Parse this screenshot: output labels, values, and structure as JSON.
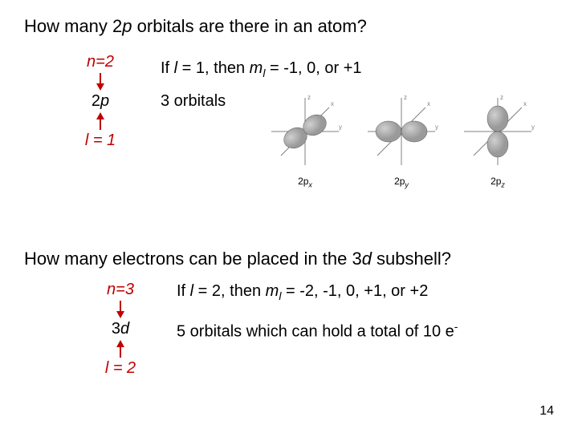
{
  "colors": {
    "text": "#000000",
    "accent": "#c00000",
    "arrow": "#c00000",
    "orbital_fill": "#9a9a9a",
    "orbital_stroke": "#5a5a5a",
    "axis": "#808080",
    "bg": "#ffffff"
  },
  "font": {
    "family": "Arial",
    "size_body": 20,
    "size_question": 22,
    "size_pagenum": 16
  },
  "q1": {
    "question_pre": "How many 2",
    "question_mid": "p",
    "question_post": " orbitals are there in an atom?",
    "n_label_pre": "n",
    "n_label_post": "=2",
    "subshell_pre": "2",
    "subshell_letter": "p",
    "l_label_pre": "l",
    "l_label_post": " = 1",
    "line1_pre": "If ",
    "line1_l": "l",
    "line1_mid": " = 1, then ",
    "line1_m": "m",
    "line1_post": " = -1, 0, or +1",
    "line2": "3 orbitals",
    "orbitals": [
      {
        "axis": "x",
        "caption_pre": "2p",
        "caption_sub": "x"
      },
      {
        "axis": "y",
        "caption_pre": "2p",
        "caption_sub": "y"
      },
      {
        "axis": "z",
        "caption_pre": "2p",
        "caption_sub": "z"
      }
    ]
  },
  "q2": {
    "question_pre": "How many electrons can be placed in the 3",
    "question_mid": "d",
    "question_post": " subshell?",
    "n_label_pre": "n",
    "n_label_post": "=3",
    "subshell_pre": "3",
    "subshell_letter": "d",
    "l_label_pre": "l",
    "l_label_post": " = 2",
    "line1_pre": "If ",
    "line1_l": "l",
    "line1_mid": " = 2, then ",
    "line1_m": "m",
    "line1_post": " = -2, -1, 0, +1, or +2",
    "line2_pre": "5 orbitals which can hold a total of 10 e",
    "line2_sup": "-"
  },
  "page_number": "14",
  "arrow": {
    "length": 18,
    "width": 2,
    "head": 5
  }
}
